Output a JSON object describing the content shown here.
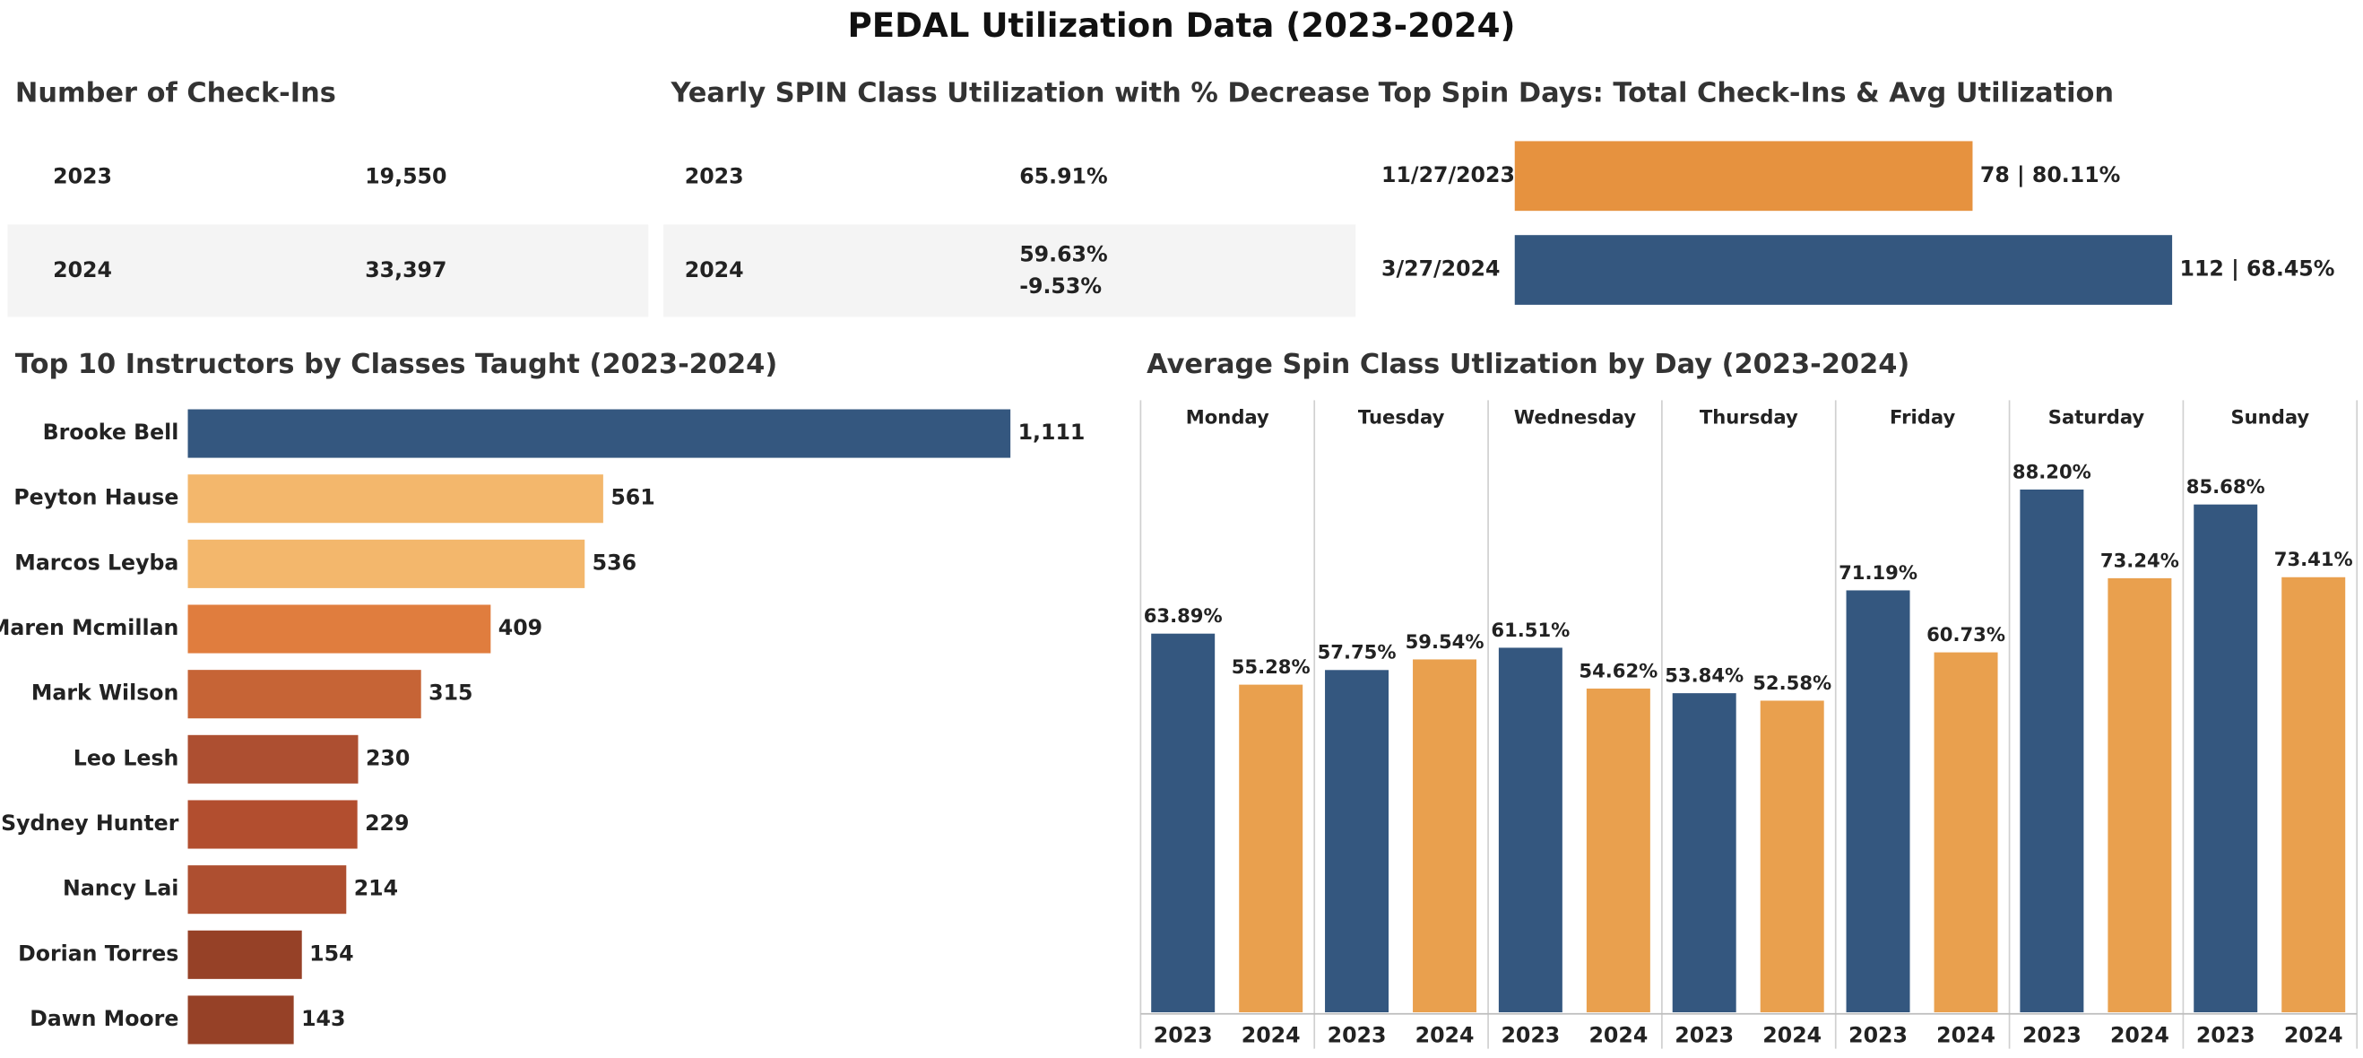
{
  "title": "PEDAL Utilization Data (2023-2024)",
  "checkins": {
    "title": "Number of Check-Ins",
    "rows": [
      [
        "2023",
        "19,550"
      ],
      [
        "2024",
        "33,397"
      ]
    ]
  },
  "utilization": {
    "title": "Yearly SPIN Class Utilization with % Decrease",
    "rows": [
      [
        "2023",
        "65.91%"
      ],
      [
        "2024",
        "59.63%",
        "-9.53%"
      ]
    ]
  },
  "chart_data": [
    {
      "type": "hbar",
      "title": "Top Spin Days: Total Check-Ins & Avg Utilization",
      "categories": [
        "11/27/2023",
        "3/27/2024"
      ],
      "values": [
        78,
        112
      ],
      "value_labels": [
        "78 | 80.11%",
        "112 | 68.45%"
      ],
      "colors": [
        "#e6923f",
        "#34577f"
      ]
    },
    {
      "type": "hbar",
      "title": "Top 10 Instructors by Classes Taught (2023-2024)",
      "categories": [
        "Brooke Bell",
        "Peyton Hause",
        "Marcos Leyba",
        "Maren Mcmillan",
        "Mark Wilson",
        "Leo Lesh",
        "Sydney Hunter",
        "Nancy Lai",
        "Dorian Torres",
        "Dawn Moore"
      ],
      "values": [
        1111,
        561,
        536,
        409,
        315,
        230,
        229,
        214,
        154,
        143
      ],
      "value_labels": [
        "1,111",
        "561",
        "536",
        "409",
        "315",
        "230",
        "229",
        "214",
        "154",
        "143"
      ],
      "colors": [
        "#34577f",
        "#f3b76c",
        "#f3b76c",
        "#e07d3e",
        "#c66436",
        "#ad4f31",
        "#b24e2f",
        "#ae4f30",
        "#964127",
        "#964127"
      ]
    },
    {
      "type": "faceted_bar",
      "title": "Average Spin Class Utlization by Day (2023-2024)",
      "categories": [
        "Monday",
        "Tuesday",
        "Wednesday",
        "Thursday",
        "Friday",
        "Saturday",
        "Sunday"
      ],
      "series": [
        {
          "name": "2023",
          "color": "#34577f",
          "values": [
            63.89,
            57.75,
            61.51,
            53.84,
            71.19,
            88.2,
            85.68
          ],
          "value_labels": [
            "63.89%",
            "57.75%",
            "61.51%",
            "53.84%",
            "71.19%",
            "88.20%",
            "85.68%"
          ]
        },
        {
          "name": "2024",
          "color": "#e9a04e",
          "values": [
            55.28,
            59.54,
            54.62,
            52.58,
            60.73,
            73.24,
            73.41
          ],
          "value_labels": [
            "55.28%",
            "59.54%",
            "54.62%",
            "52.58%",
            "60.73%",
            "73.24%",
            "73.41%"
          ]
        }
      ]
    }
  ]
}
